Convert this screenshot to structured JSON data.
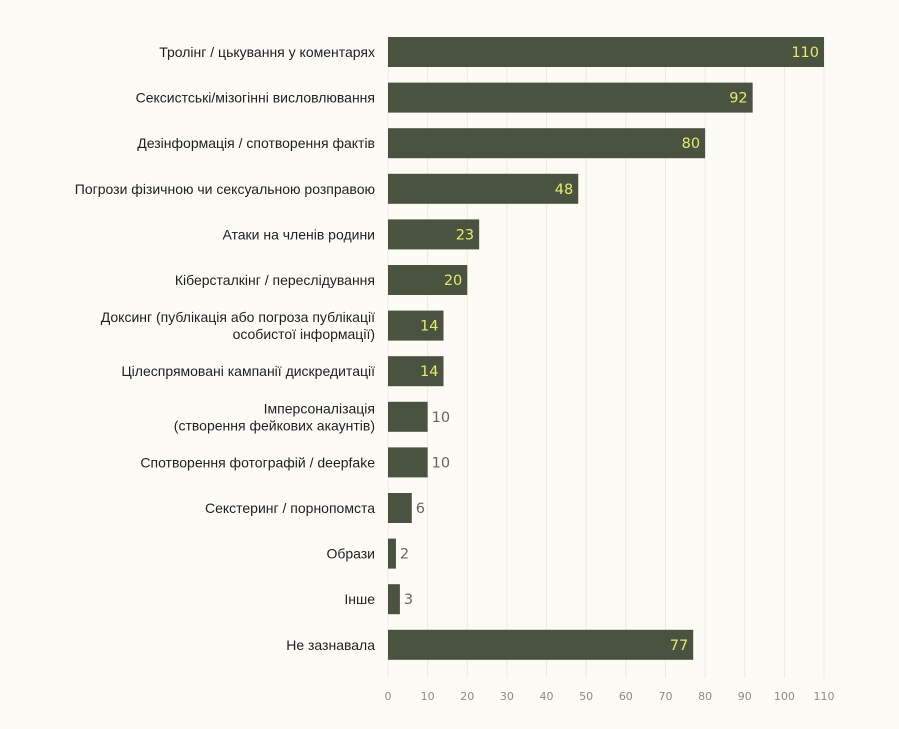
{
  "chart_data": {
    "type": "bar",
    "orientation": "horizontal",
    "title": "",
    "xlabel": "",
    "ylabel": "",
    "categories": [
      "Тролінг / цькування у коментарях",
      "Сексистські/мізогінні висловлювання",
      "Дезінформація / спотворення фактів",
      "Погрози фізичною чи сексуальною розправою",
      "Атаки на членів родини",
      "Кіберсталкінг / переслідування",
      "Доксинг (публікація або погроза публікації\nособистої інформації)",
      "Цілеспрямовані кампанії дискредитації",
      "Імперсоналізація\n(створення фейкових акаунтів)",
      "Спотворення фотографій / deepfake",
      "Секстеринг / порнопомста",
      "Образи",
      "Інше",
      "Не зазнавала"
    ],
    "values": [
      110,
      92,
      80,
      48,
      23,
      20,
      14,
      14,
      10,
      10,
      6,
      2,
      3,
      77
    ],
    "xlim": [
      0,
      110
    ],
    "xticks": [
      0,
      10,
      20,
      30,
      40,
      50,
      60,
      70,
      80,
      90,
      100,
      110
    ],
    "grid": "vertical",
    "legend": "none",
    "colors": {
      "bar": "#4a5240",
      "label_inside": "#e4ec6a",
      "label_outside": "#666666",
      "grid": "#ebebe3",
      "background": "#fcfbf5"
    }
  }
}
